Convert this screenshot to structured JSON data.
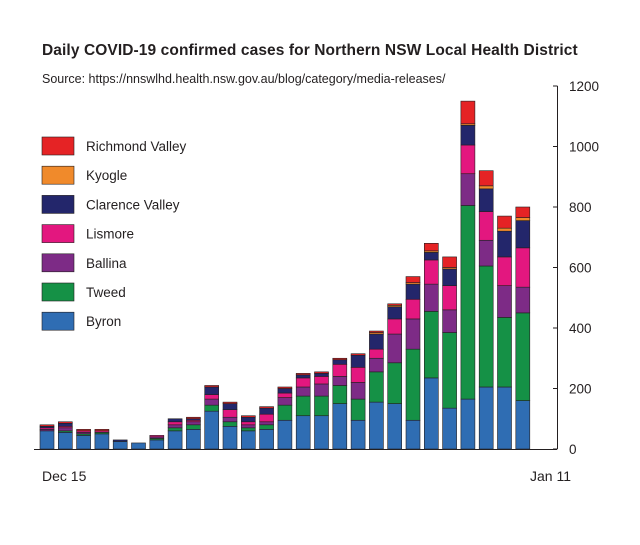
{
  "chart_data": {
    "type": "bar",
    "stacked": true,
    "title": "Daily COVID-19 confirmed cases for Northern NSW Local Health District",
    "subtitle": "Source: https://nnswlhd.health.nsw.gov.au/blog/category/media-releases/",
    "x_tick_labels": [
      "Dec 15",
      "Jan 11"
    ],
    "xlabel": "",
    "ylabel": "",
    "ylim": [
      0,
      1200
    ],
    "y_ticks": [
      "0",
      "200",
      "400",
      "600",
      "800",
      "1000",
      "1200"
    ],
    "y_axis_side": "right",
    "legend_position": "left",
    "grid": false,
    "series": [
      {
        "name": "Byron",
        "color": "#2f6db3",
        "values": [
          60,
          55,
          45,
          50,
          25,
          20,
          30,
          60,
          65,
          125,
          75,
          60,
          65,
          95,
          110,
          110,
          150,
          95,
          155,
          150,
          95,
          235,
          135,
          165,
          205,
          205,
          160
        ]
      },
      {
        "name": "Tweed",
        "color": "#159146",
        "values": [
          0,
          5,
          5,
          5,
          0,
          0,
          5,
          10,
          15,
          20,
          15,
          10,
          15,
          50,
          65,
          65,
          60,
          70,
          100,
          135,
          235,
          220,
          250,
          640,
          400,
          230,
          290
        ]
      },
      {
        "name": "Ballina",
        "color": "#7d2b86",
        "values": [
          5,
          10,
          5,
          0,
          0,
          0,
          5,
          10,
          10,
          20,
          15,
          10,
          10,
          25,
          30,
          40,
          30,
          55,
          45,
          95,
          100,
          90,
          75,
          105,
          85,
          105,
          85
        ]
      },
      {
        "name": "Lismore",
        "color": "#e3177f",
        "values": [
          5,
          5,
          5,
          5,
          0,
          0,
          5,
          10,
          5,
          15,
          25,
          10,
          25,
          15,
          30,
          25,
          40,
          50,
          30,
          50,
          65,
          80,
          80,
          95,
          95,
          95,
          130
        ]
      },
      {
        "name": "Clarence Valley",
        "color": "#23266b",
        "values": [
          5,
          10,
          0,
          0,
          5,
          0,
          0,
          10,
          5,
          25,
          20,
          15,
          20,
          15,
          10,
          10,
          15,
          40,
          50,
          40,
          50,
          25,
          55,
          65,
          75,
          85,
          90
        ]
      },
      {
        "name": "Kyogle",
        "color": "#f08a2b",
        "values": [
          0,
          0,
          0,
          0,
          0,
          0,
          0,
          0,
          0,
          0,
          0,
          0,
          0,
          0,
          0,
          0,
          0,
          0,
          5,
          5,
          5,
          5,
          5,
          5,
          10,
          10,
          10
        ]
      },
      {
        "name": "Richmond Valley",
        "color": "#e52325",
        "values": [
          5,
          5,
          5,
          5,
          0,
          0,
          0,
          0,
          5,
          5,
          5,
          5,
          5,
          5,
          5,
          5,
          5,
          5,
          5,
          5,
          20,
          25,
          35,
          75,
          50,
          40,
          35
        ]
      }
    ],
    "legend_order": [
      "Richmond Valley",
      "Kyogle",
      "Clarence Valley",
      "Lismore",
      "Ballina",
      "Tweed",
      "Byron"
    ]
  }
}
